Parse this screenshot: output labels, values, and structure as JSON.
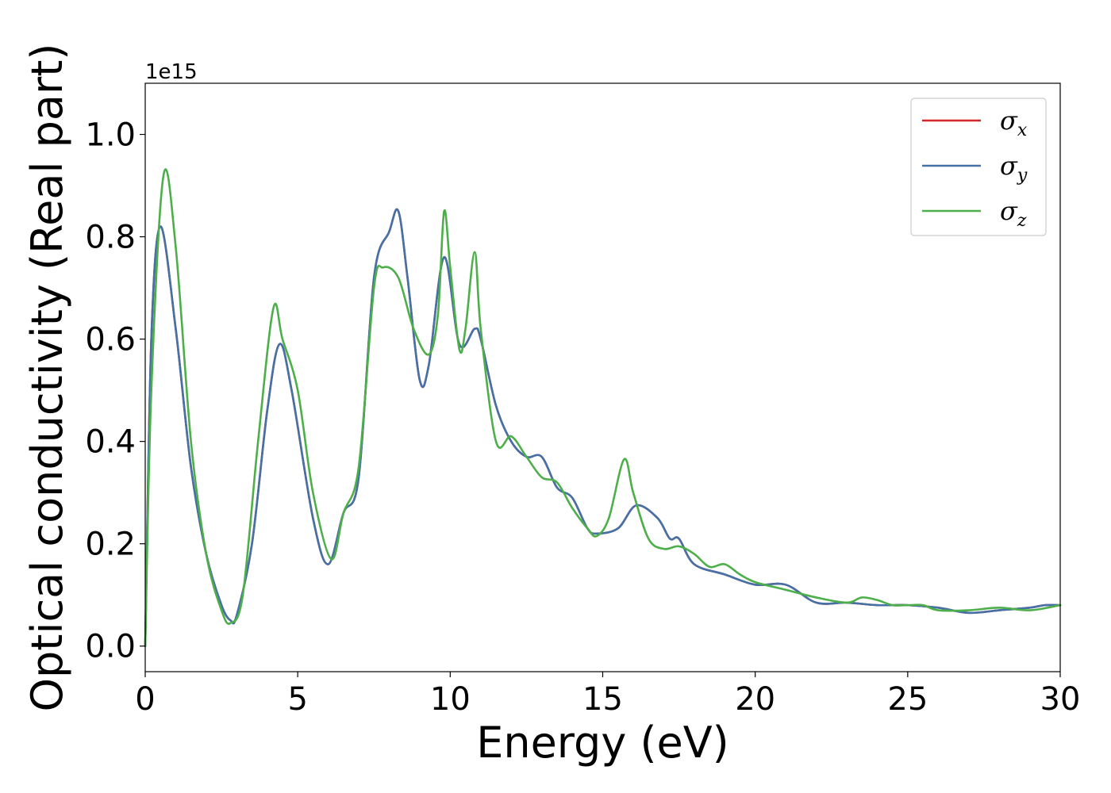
{
  "chart_data": {
    "type": "line",
    "xlabel": "Energy (eV)",
    "ylabel": "Optical conductivity (Real part)",
    "y_offset_label": "1e15",
    "xlim": [
      0,
      30
    ],
    "ylim": [
      -0.05,
      1.1
    ],
    "x_ticks": [
      0,
      5,
      10,
      15,
      20,
      25,
      30
    ],
    "x_tick_labels": [
      "0",
      "5",
      "10",
      "15",
      "20",
      "25",
      "30"
    ],
    "y_ticks": [
      0.0,
      0.2,
      0.4,
      0.6,
      0.8,
      1.0
    ],
    "y_tick_labels": [
      "0.0",
      "0.2",
      "0.4",
      "0.6",
      "0.8",
      "1.0"
    ],
    "grid": false,
    "legend_position": "top-right",
    "series": [
      {
        "name": "σx",
        "symbol": "σ",
        "subscript": "x",
        "color": "#d62728",
        "x": [
          0,
          0.2,
          0.5,
          1.0,
          1.5,
          2.0,
          2.5,
          2.8,
          3.0,
          3.5,
          4.0,
          4.4,
          4.8,
          5.5,
          6.0,
          6.5,
          7.0,
          7.5,
          8.0,
          8.3,
          8.6,
          9.0,
          9.3,
          9.8,
          10.3,
          10.8,
          11.0,
          11.5,
          12.0,
          12.5,
          13.0,
          13.5,
          14.0,
          14.5,
          14.8,
          15.5,
          16.1,
          16.8,
          17.2,
          17.5,
          18.0,
          19.0,
          20.0,
          21.0,
          22.0,
          23.0,
          24.0,
          25.0,
          26.0,
          27.0,
          28.0,
          29.0,
          29.5,
          30.0
        ],
        "values": [
          0.0,
          0.6,
          0.82,
          0.62,
          0.35,
          0.18,
          0.08,
          0.05,
          0.06,
          0.2,
          0.46,
          0.59,
          0.5,
          0.25,
          0.16,
          0.26,
          0.33,
          0.72,
          0.81,
          0.85,
          0.72,
          0.52,
          0.55,
          0.76,
          0.59,
          0.62,
          0.6,
          0.47,
          0.4,
          0.37,
          0.37,
          0.31,
          0.29,
          0.23,
          0.22,
          0.23,
          0.275,
          0.25,
          0.21,
          0.21,
          0.16,
          0.14,
          0.12,
          0.12,
          0.085,
          0.085,
          0.08,
          0.08,
          0.075,
          0.065,
          0.07,
          0.075,
          0.08,
          0.08
        ]
      },
      {
        "name": "σy",
        "symbol": "σ",
        "subscript": "y",
        "color": "#4472a8",
        "x": [
          0,
          0.2,
          0.5,
          1.0,
          1.5,
          2.0,
          2.5,
          2.8,
          3.0,
          3.5,
          4.0,
          4.4,
          4.8,
          5.5,
          6.0,
          6.5,
          7.0,
          7.5,
          8.0,
          8.3,
          8.6,
          9.0,
          9.3,
          9.8,
          10.3,
          10.8,
          11.0,
          11.5,
          12.0,
          12.5,
          13.0,
          13.5,
          14.0,
          14.5,
          14.8,
          15.5,
          16.1,
          16.8,
          17.2,
          17.5,
          18.0,
          19.0,
          20.0,
          21.0,
          22.0,
          23.0,
          24.0,
          25.0,
          26.0,
          27.0,
          28.0,
          29.0,
          29.5,
          30.0
        ],
        "values": [
          0.0,
          0.6,
          0.82,
          0.62,
          0.35,
          0.18,
          0.08,
          0.05,
          0.06,
          0.2,
          0.46,
          0.59,
          0.5,
          0.25,
          0.16,
          0.26,
          0.33,
          0.72,
          0.81,
          0.85,
          0.72,
          0.52,
          0.55,
          0.76,
          0.59,
          0.62,
          0.6,
          0.47,
          0.4,
          0.37,
          0.37,
          0.31,
          0.29,
          0.23,
          0.22,
          0.23,
          0.275,
          0.25,
          0.21,
          0.21,
          0.16,
          0.14,
          0.12,
          0.12,
          0.085,
          0.085,
          0.08,
          0.08,
          0.075,
          0.065,
          0.07,
          0.075,
          0.08,
          0.08
        ]
      },
      {
        "name": "σz",
        "symbol": "σ",
        "subscript": "z",
        "color": "#4daf4a",
        "x": [
          0,
          0.2,
          0.6,
          1.0,
          1.5,
          2.0,
          2.5,
          2.8,
          3.2,
          3.7,
          4.2,
          4.5,
          5.0,
          5.5,
          6.1,
          6.5,
          7.0,
          7.5,
          7.8,
          8.3,
          8.8,
          9.3,
          9.6,
          9.8,
          10.0,
          10.3,
          10.5,
          10.8,
          11.0,
          11.5,
          12.0,
          12.5,
          13.0,
          13.5,
          14.0,
          14.5,
          14.8,
          15.2,
          15.7,
          16.0,
          16.5,
          17.0,
          17.5,
          18.0,
          18.5,
          19.0,
          19.5,
          20.0,
          21.0,
          22.0,
          23.0,
          23.5,
          24.0,
          24.5,
          25.0,
          25.5,
          26.0,
          27.0,
          28.0,
          29.0,
          30.0
        ],
        "values": [
          0.0,
          0.5,
          0.92,
          0.78,
          0.4,
          0.18,
          0.07,
          0.045,
          0.1,
          0.4,
          0.66,
          0.6,
          0.5,
          0.3,
          0.17,
          0.26,
          0.35,
          0.7,
          0.74,
          0.72,
          0.62,
          0.57,
          0.65,
          0.85,
          0.74,
          0.58,
          0.62,
          0.77,
          0.62,
          0.4,
          0.41,
          0.37,
          0.33,
          0.32,
          0.27,
          0.23,
          0.215,
          0.25,
          0.365,
          0.3,
          0.21,
          0.19,
          0.195,
          0.18,
          0.155,
          0.16,
          0.14,
          0.125,
          0.11,
          0.095,
          0.085,
          0.095,
          0.09,
          0.08,
          0.08,
          0.08,
          0.07,
          0.07,
          0.075,
          0.07,
          0.08
        ]
      }
    ]
  }
}
